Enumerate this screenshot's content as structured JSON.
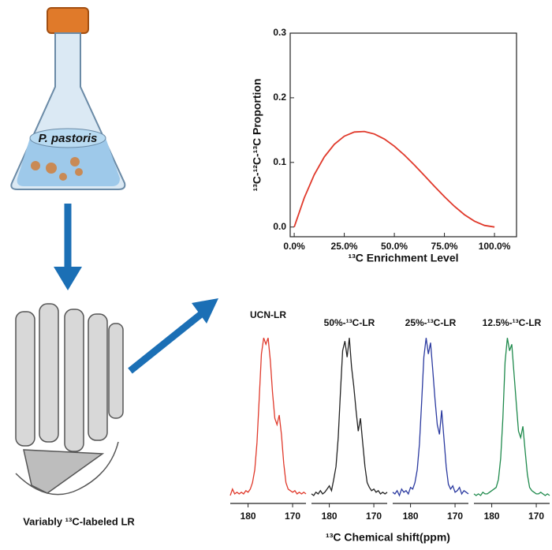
{
  "illustration": {
    "flask_label": "P. pastoris",
    "protein_label": "Variably ¹³C-labeled LR"
  },
  "chart_data": [
    {
      "type": "line",
      "ylabel": "¹³C-¹²C-¹³C Proportion",
      "xlabel": "¹³C Enrichment Level",
      "color": "#e0392b",
      "x": [
        0,
        5,
        10,
        15,
        20,
        25,
        30,
        35,
        40,
        45,
        50,
        55,
        60,
        65,
        70,
        75,
        80,
        85,
        90,
        95,
        100
      ],
      "values": [
        0,
        0.0451,
        0.081,
        0.1084,
        0.128,
        0.1406,
        0.147,
        0.1479,
        0.144,
        0.1361,
        0.125,
        0.1114,
        0.096,
        0.0796,
        0.063,
        0.0469,
        0.032,
        0.0191,
        0.009,
        0.0024,
        0
      ],
      "xlim": [
        -2,
        111
      ],
      "ylim": [
        -0.015,
        0.3
      ],
      "xticks": [
        {
          "value": 0,
          "label": "0.0%"
        },
        {
          "value": 25,
          "label": "25.0%"
        },
        {
          "value": 50,
          "label": "50.0%"
        },
        {
          "value": 75,
          "label": "75.0%"
        },
        {
          "value": 100,
          "label": "100.0%"
        }
      ],
      "yticks": [
        {
          "value": 0,
          "label": "0.0"
        },
        0.1,
        0.2,
        0.3
      ]
    },
    {
      "type": "spectra",
      "xlabel": "¹³C Chemical shift(ppm)",
      "x": [
        184,
        183.5,
        183,
        182.5,
        182,
        181.5,
        181,
        180.5,
        180,
        179.5,
        179,
        178.5,
        178,
        177.5,
        177,
        176.5,
        176,
        175.5,
        175,
        174.5,
        174,
        173.5,
        173,
        172.5,
        172,
        171.5,
        171,
        170.5,
        170,
        169.5,
        169,
        168.5,
        168,
        167.5,
        167
      ],
      "xlim": [
        184,
        167
      ],
      "ylim": [
        0,
        1.05
      ],
      "xticks": [
        180,
        170
      ],
      "series": [
        {
          "name": "UCN-LR",
          "color": "#e0392b",
          "values": [
            0.02,
            0.06,
            0.03,
            0.04,
            0.03,
            0.04,
            0.03,
            0.05,
            0.04,
            0.06,
            0.1,
            0.18,
            0.35,
            0.62,
            0.9,
            1.0,
            0.96,
            1.0,
            0.86,
            0.66,
            0.5,
            0.46,
            0.52,
            0.4,
            0.22,
            0.1,
            0.06,
            0.05,
            0.04,
            0.05,
            0.03,
            0.04,
            0.03,
            0.04,
            0.03
          ]
        },
        {
          "name": "50%-¹³C-LR",
          "color": "#222222",
          "values": [
            0.03,
            0.02,
            0.04,
            0.03,
            0.05,
            0.03,
            0.04,
            0.06,
            0.08,
            0.05,
            0.12,
            0.2,
            0.38,
            0.66,
            0.92,
            0.98,
            0.88,
            1.0,
            0.82,
            0.7,
            0.55,
            0.42,
            0.5,
            0.35,
            0.2,
            0.1,
            0.07,
            0.05,
            0.06,
            0.04,
            0.05,
            0.03,
            0.04,
            0.03,
            0.04
          ]
        },
        {
          "name": "25%-¹³C-LR",
          "color": "#2b3aa0",
          "values": [
            0.04,
            0.03,
            0.05,
            0.02,
            0.06,
            0.04,
            0.05,
            0.03,
            0.07,
            0.06,
            0.1,
            0.18,
            0.34,
            0.6,
            0.88,
            1.0,
            0.9,
            0.97,
            0.8,
            0.62,
            0.46,
            0.4,
            0.55,
            0.38,
            0.2,
            0.09,
            0.06,
            0.08,
            0.04,
            0.05,
            0.07,
            0.03,
            0.05,
            0.04,
            0.03
          ]
        },
        {
          "name": "12.5%-¹³C-LR",
          "color": "#1f8a4c",
          "values": [
            0.03,
            0.02,
            0.03,
            0.02,
            0.04,
            0.03,
            0.03,
            0.04,
            0.05,
            0.06,
            0.07,
            0.12,
            0.25,
            0.5,
            0.85,
            1.0,
            0.92,
            0.96,
            0.78,
            0.6,
            0.42,
            0.38,
            0.45,
            0.3,
            0.15,
            0.07,
            0.05,
            0.04,
            0.03,
            0.03,
            0.04,
            0.03,
            0.02,
            0.03,
            0.02
          ]
        }
      ]
    }
  ]
}
